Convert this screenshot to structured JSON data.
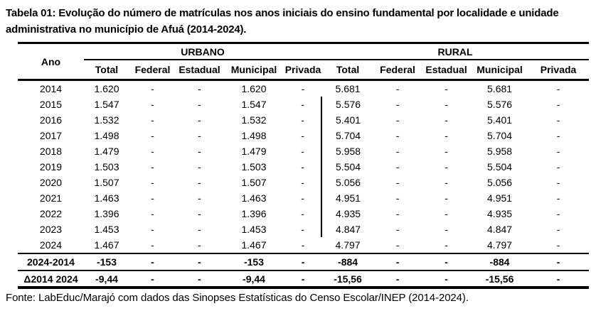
{
  "title": "Tabela 01: Evolução do número de matrículas nos anos iniciais do ensino fundamental por localidade e unidade administrativa no município de Afuá (2014-2024).",
  "footer": "Fonte: LabEduc/Marajó com dados das Sinopses Estatísticas do Censo Escolar/INEP (2014-2024).",
  "table": {
    "year_header": "Ano",
    "groups": [
      {
        "label": "URBANO"
      },
      {
        "label": "RURAL"
      }
    ],
    "subheaders": [
      "Total",
      "Federal",
      "Estadual",
      "Municipal",
      "Privada"
    ],
    "rows": [
      {
        "ano": "2014",
        "urbano": [
          "1.620",
          "-",
          "-",
          "1.620",
          "-"
        ],
        "rural": [
          "5.681",
          "-",
          "-",
          "5.681",
          "-"
        ]
      },
      {
        "ano": "2015",
        "urbano": [
          "1.547",
          "-",
          "-",
          "1.547",
          "-"
        ],
        "rural": [
          "5.576",
          "-",
          "-",
          "5.576",
          "-"
        ]
      },
      {
        "ano": "2016",
        "urbano": [
          "1.532",
          "-",
          "-",
          "1.532",
          "-"
        ],
        "rural": [
          "5.401",
          "-",
          "-",
          "5.401",
          "-"
        ]
      },
      {
        "ano": "2017",
        "urbano": [
          "1.498",
          "-",
          "-",
          "1.498",
          "-"
        ],
        "rural": [
          "5.704",
          "-",
          "-",
          "5.704",
          "-"
        ]
      },
      {
        "ano": "2018",
        "urbano": [
          "1.479",
          "-",
          "-",
          "1.479",
          "-"
        ],
        "rural": [
          "5.958",
          "-",
          "-",
          "5.958",
          "-"
        ]
      },
      {
        "ano": "2019",
        "urbano": [
          "1.503",
          "-",
          "-",
          "1.503",
          "-"
        ],
        "rural": [
          "5.504",
          "-",
          "-",
          "5.504",
          "-"
        ]
      },
      {
        "ano": "2020",
        "urbano": [
          "1.507",
          "-",
          "-",
          "1.507",
          "-"
        ],
        "rural": [
          "5.056",
          "-",
          "-",
          "5.056",
          "-"
        ]
      },
      {
        "ano": "2021",
        "urbano": [
          "1.463",
          "-",
          "-",
          "1.463",
          "-"
        ],
        "rural": [
          "4.951",
          "-",
          "-",
          "4.951",
          "-"
        ]
      },
      {
        "ano": "2022",
        "urbano": [
          "1.396",
          "-",
          "-",
          "1.396",
          "-"
        ],
        "rural": [
          "4.935",
          "-",
          "-",
          "4.935",
          "-"
        ]
      },
      {
        "ano": "2023",
        "urbano": [
          "1.453",
          "-",
          "-",
          "1.453",
          "-"
        ],
        "rural": [
          "4.847",
          "-",
          "-",
          "4.847",
          "-"
        ]
      },
      {
        "ano": "2024",
        "urbano": [
          "1.467",
          "-",
          "-",
          "1.467",
          "-"
        ],
        "rural": [
          "4.797",
          "-",
          "-",
          "4.797",
          "-"
        ]
      }
    ],
    "summary_rows": [
      {
        "ano": "2024-2014",
        "urbano": [
          "-153",
          "-",
          "-",
          "-153",
          "-"
        ],
        "rural": [
          "-884",
          "-",
          "-",
          "-884",
          "-"
        ]
      },
      {
        "ano": "Δ2014 2024",
        "urbano": [
          "-9,44",
          "-",
          "-",
          "-9,44",
          "-"
        ],
        "rural": [
          "-15,56",
          "-",
          "-",
          "-15,56",
          "-"
        ]
      }
    ],
    "divider_rows": [
      "2015",
      "2016",
      "2017",
      "2018",
      "2019",
      "2020",
      "2021",
      "2022",
      "2023"
    ]
  }
}
